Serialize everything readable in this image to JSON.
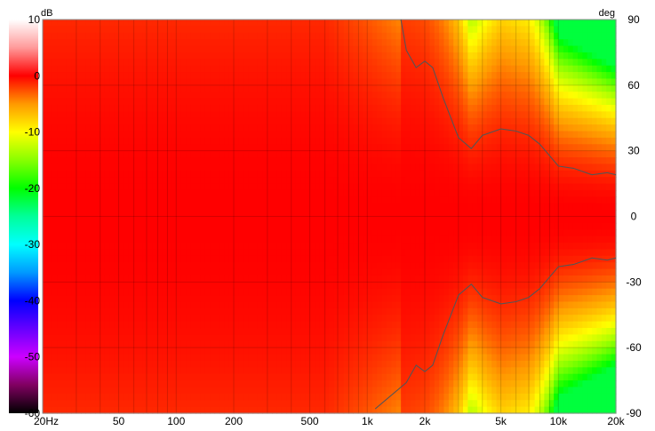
{
  "chart_data": {
    "type": "heatmap",
    "title": "",
    "xlabel": "",
    "ylabel": "",
    "color_units": "dB",
    "y_units": "deg",
    "x_scale": "log",
    "xlim": [
      20,
      20000
    ],
    "ylim": [
      -90,
      90
    ],
    "color_range": [
      -60,
      10
    ],
    "grid": true,
    "x_ticks": [
      {
        "value": 20,
        "label": "20Hz"
      },
      {
        "value": 50,
        "label": "50"
      },
      {
        "value": 100,
        "label": "100"
      },
      {
        "value": 200,
        "label": "200"
      },
      {
        "value": 500,
        "label": "500"
      },
      {
        "value": 1000,
        "label": "1k"
      },
      {
        "value": 2000,
        "label": "2k"
      },
      {
        "value": 5000,
        "label": "5k"
      },
      {
        "value": 10000,
        "label": "10k"
      },
      {
        "value": 20000,
        "label": "20k"
      }
    ],
    "y_ticks": [
      {
        "value": 90,
        "label": "90"
      },
      {
        "value": 60,
        "label": "60"
      },
      {
        "value": 30,
        "label": "30"
      },
      {
        "value": 0,
        "label": "0"
      },
      {
        "value": -30,
        "label": "-30"
      },
      {
        "value": -60,
        "label": "-60"
      },
      {
        "value": -90,
        "label": "-90"
      }
    ],
    "colorbar_ticks": [
      {
        "value": 10,
        "label": "10"
      },
      {
        "value": 0,
        "label": "0"
      },
      {
        "value": -10,
        "label": "-10"
      },
      {
        "value": -20,
        "label": "-20"
      },
      {
        "value": -30,
        "label": "-30"
      },
      {
        "value": -40,
        "label": "-40"
      },
      {
        "value": -50,
        "label": "-50"
      },
      {
        "value": -60,
        "label": "-60"
      }
    ],
    "colorbar_stops": [
      {
        "db": 10,
        "color": "#ffffff"
      },
      {
        "db": 5,
        "color": "#ff9a9a"
      },
      {
        "db": 0,
        "color": "#ff0000"
      },
      {
        "db": -5,
        "color": "#ff9900"
      },
      {
        "db": -10,
        "color": "#ffff00"
      },
      {
        "db": -15,
        "color": "#88ff00"
      },
      {
        "db": -20,
        "color": "#00ff00"
      },
      {
        "db": -25,
        "color": "#00ff99"
      },
      {
        "db": -30,
        "color": "#00ffff"
      },
      {
        "db": -35,
        "color": "#0099ff"
      },
      {
        "db": -40,
        "color": "#0000ff"
      },
      {
        "db": -45,
        "color": "#6600ff"
      },
      {
        "db": -50,
        "color": "#cc00ff"
      },
      {
        "db": -55,
        "color": "#800060"
      },
      {
        "db": -60,
        "color": "#000000"
      }
    ],
    "contour_level_db": -6,
    "contour_angle_deg": {
      "freqs_hz": [
        1500,
        1600,
        1800,
        2000,
        2200,
        2500,
        3000,
        3500,
        4000,
        5000,
        6000,
        7000,
        8000,
        10000,
        12000,
        15000,
        18000,
        20000
      ],
      "angles": [
        90,
        76,
        68,
        71,
        68,
        54,
        36,
        31,
        37,
        40,
        39,
        37,
        33,
        23,
        22,
        19,
        20,
        19
      ]
    },
    "contour_notes": "symmetric about 0 deg; bottom branch starts near -88 deg at 1.1 kHz"
  }
}
